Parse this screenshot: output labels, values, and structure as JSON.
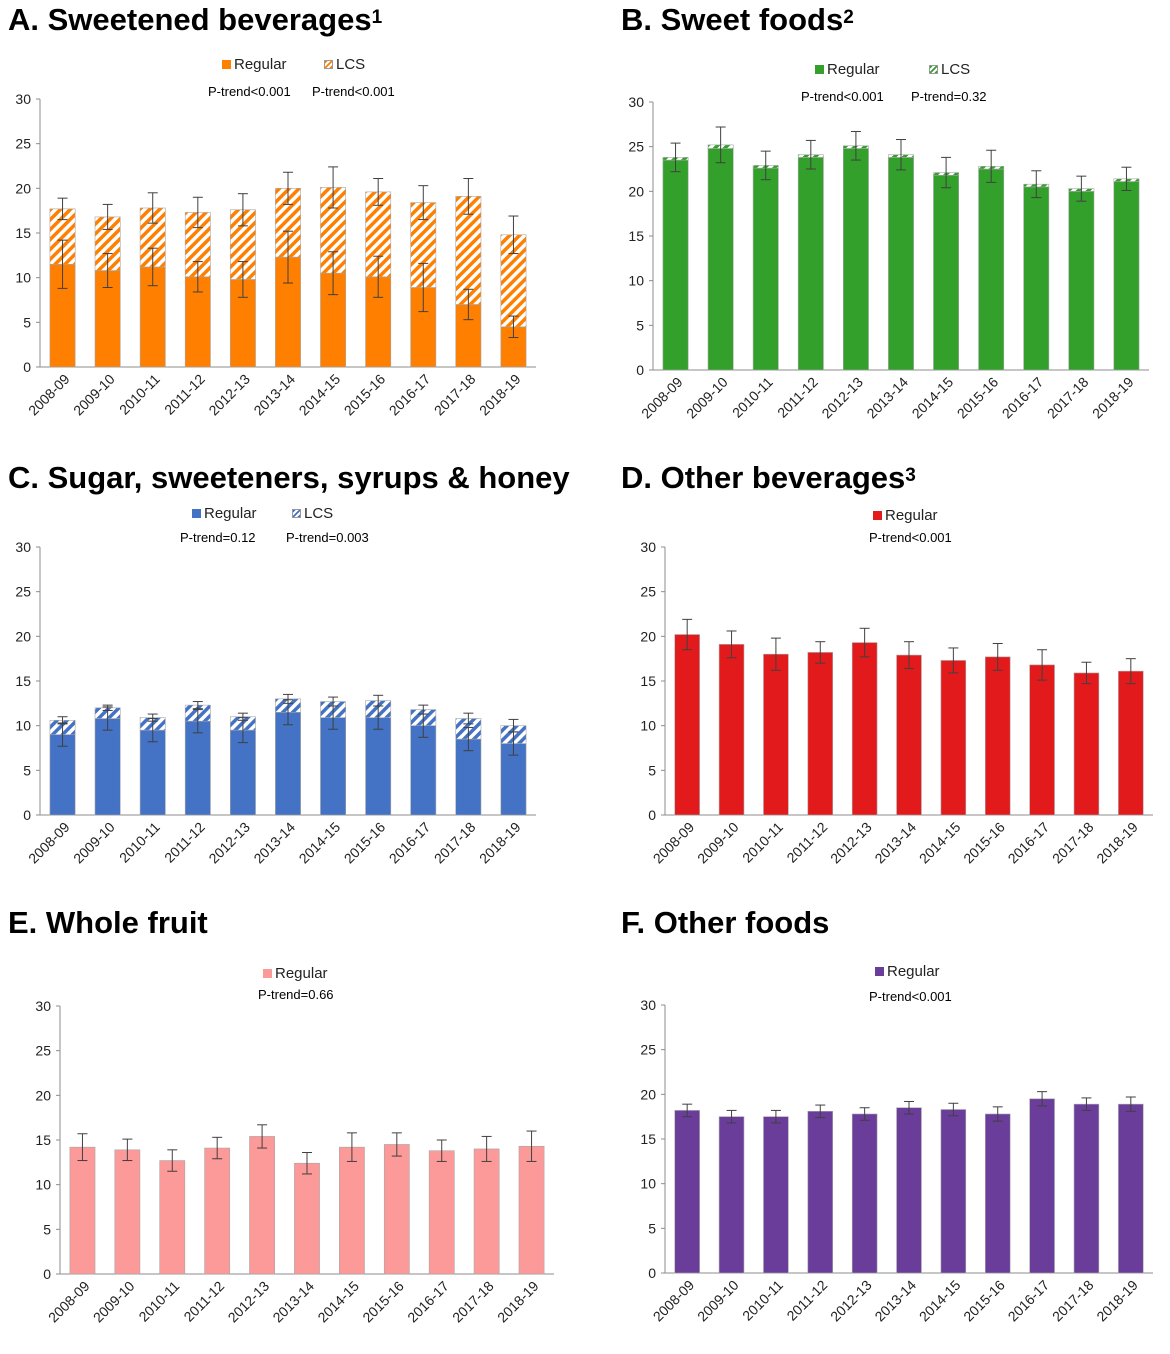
{
  "chart_data": [
    {
      "id": "A",
      "type": "bar",
      "title": "A. Sweetened beverages",
      "title_sup": "1",
      "categories": [
        "2008-09",
        "2009-10",
        "2010-11",
        "2011-12",
        "2012-13",
        "2013-14",
        "2014-15",
        "2015-16",
        "2016-17",
        "2017-18",
        "2018-19"
      ],
      "series": [
        {
          "name": "Regular",
          "values": [
            11.5,
            10.8,
            11.2,
            10.1,
            9.8,
            12.3,
            10.5,
            10.1,
            8.9,
            7.0,
            4.5
          ],
          "err": [
            2.7,
            1.9,
            2.1,
            1.7,
            2.0,
            2.9,
            2.4,
            2.3,
            2.7,
            1.7,
            1.2
          ]
        },
        {
          "name": "LCS",
          "values": [
            6.2,
            6.0,
            6.6,
            7.2,
            7.8,
            7.7,
            9.6,
            9.5,
            9.5,
            12.1,
            10.3
          ],
          "err": [
            1.2,
            1.4,
            1.7,
            1.7,
            1.8,
            1.8,
            2.3,
            1.5,
            1.9,
            2.0,
            2.1
          ]
        }
      ],
      "ptrends": [
        "P-trend<0.001",
        "P-trend<0.001"
      ],
      "yticks": [
        "0",
        "5",
        "10",
        "15",
        "20",
        "25",
        "30"
      ],
      "ylim": [
        0,
        30
      ],
      "colors": {
        "regular": "#ff7f00",
        "lcs": "#ff7f00"
      }
    },
    {
      "id": "B",
      "type": "bar",
      "title": "B. Sweet foods",
      "title_sup": "2",
      "categories": [
        "2008-09",
        "2009-10",
        "2010-11",
        "2011-12",
        "2012-13",
        "2013-14",
        "2014-15",
        "2015-16",
        "2016-17",
        "2017-18",
        "2018-19"
      ],
      "series": [
        {
          "name": "Regular",
          "values": [
            23.5,
            24.8,
            22.6,
            23.8,
            24.8,
            23.8,
            21.8,
            22.5,
            20.5,
            20.0,
            21.1
          ],
          "err": [
            0,
            0,
            0,
            0,
            0,
            0,
            0,
            0,
            0,
            0,
            0
          ]
        },
        {
          "name": "LCS",
          "values": [
            0.3,
            0.4,
            0.3,
            0.3,
            0.3,
            0.3,
            0.3,
            0.3,
            0.3,
            0.3,
            0.3
          ],
          "err": [
            1.6,
            2.0,
            1.6,
            1.6,
            1.6,
            1.7,
            1.7,
            1.8,
            1.5,
            1.4,
            1.3
          ]
        }
      ],
      "ptrends": [
        "P-trend<0.001",
        "P-trend=0.32"
      ],
      "yticks": [
        "0",
        "5",
        "10",
        "15",
        "20",
        "25",
        "30"
      ],
      "ylim": [
        0,
        30
      ],
      "colors": {
        "regular": "#33a02c",
        "lcs": "#33a02c"
      }
    },
    {
      "id": "C",
      "type": "bar",
      "title": "C. Sugar, sweeteners, syrups & honey",
      "title_sup": "",
      "categories": [
        "2008-09",
        "2009-10",
        "2010-11",
        "2011-12",
        "2012-13",
        "2013-14",
        "2014-15",
        "2015-16",
        "2016-17",
        "2017-18",
        "2018-19"
      ],
      "series": [
        {
          "name": "Regular",
          "values": [
            9.0,
            10.8,
            9.5,
            10.5,
            9.5,
            11.5,
            10.9,
            10.9,
            10.0,
            8.5,
            8.0
          ],
          "err": [
            1.3,
            1.3,
            1.3,
            1.3,
            1.4,
            1.4,
            1.3,
            1.3,
            1.3,
            1.3,
            1.3
          ]
        },
        {
          "name": "LCS",
          "values": [
            1.6,
            1.2,
            1.4,
            1.8,
            1.5,
            1.5,
            1.8,
            1.9,
            1.8,
            2.3,
            2.0
          ],
          "err": [
            0.4,
            0.3,
            0.4,
            0.4,
            0.4,
            0.5,
            0.5,
            0.6,
            0.5,
            0.6,
            0.7
          ]
        }
      ],
      "ptrends": [
        "P-trend=0.12",
        "P-trend=0.003"
      ],
      "yticks": [
        "0",
        "5",
        "10",
        "15",
        "20",
        "25",
        "30"
      ],
      "ylim": [
        0,
        30
      ],
      "colors": {
        "regular": "#4472c4",
        "lcs": "#4472c4"
      }
    },
    {
      "id": "D",
      "type": "bar",
      "title": "D. Other beverages",
      "title_sup": "3",
      "categories": [
        "2008-09",
        "2009-10",
        "2010-11",
        "2011-12",
        "2012-13",
        "2013-14",
        "2014-15",
        "2015-16",
        "2016-17",
        "2017-18",
        "2018-19"
      ],
      "series": [
        {
          "name": "Regular",
          "values": [
            20.2,
            19.1,
            18.0,
            18.2,
            19.3,
            17.9,
            17.3,
            17.7,
            16.8,
            15.9,
            16.1
          ],
          "err": [
            1.7,
            1.5,
            1.8,
            1.2,
            1.6,
            1.5,
            1.4,
            1.5,
            1.7,
            1.2,
            1.4
          ]
        }
      ],
      "ptrends": [
        "P-trend<0.001"
      ],
      "yticks": [
        "0",
        "5",
        "10",
        "15",
        "20",
        "25",
        "30"
      ],
      "ylim": [
        0,
        30
      ],
      "colors": {
        "regular": "#e31a1c"
      }
    },
    {
      "id": "E",
      "type": "bar",
      "title": "E. Whole fruit",
      "title_sup": "",
      "categories": [
        "2008-09",
        "2009-10",
        "2010-11",
        "2011-12",
        "2012-13",
        "2013-14",
        "2014-15",
        "2015-16",
        "2016-17",
        "2017-18",
        "2018-19"
      ],
      "series": [
        {
          "name": "Regular",
          "values": [
            14.2,
            13.9,
            12.7,
            14.1,
            15.4,
            12.4,
            14.2,
            14.5,
            13.8,
            14.0,
            14.3
          ],
          "err": [
            1.5,
            1.2,
            1.2,
            1.2,
            1.3,
            1.2,
            1.6,
            1.3,
            1.2,
            1.4,
            1.7
          ]
        }
      ],
      "ptrends": [
        "P-trend=0.66"
      ],
      "yticks": [
        "0",
        "5",
        "10",
        "15",
        "20",
        "25",
        "30"
      ],
      "ylim": [
        0,
        30
      ],
      "colors": {
        "regular": "#fb9a99"
      }
    },
    {
      "id": "F",
      "type": "bar",
      "title": "F. Other foods",
      "title_sup": "",
      "categories": [
        "2008-09",
        "2009-10",
        "2010-11",
        "2011-12",
        "2012-13",
        "2013-14",
        "2014-15",
        "2015-16",
        "2016-17",
        "2017-18",
        "2018-19"
      ],
      "series": [
        {
          "name": "Regular",
          "values": [
            18.2,
            17.5,
            17.5,
            18.1,
            17.8,
            18.5,
            18.3,
            17.8,
            19.5,
            18.9,
            18.9
          ],
          "err": [
            0.7,
            0.7,
            0.7,
            0.7,
            0.7,
            0.7,
            0.7,
            0.8,
            0.8,
            0.7,
            0.8
          ]
        }
      ],
      "ptrends": [
        "P-trend<0.001"
      ],
      "yticks": [
        "0",
        "5",
        "10",
        "15",
        "20",
        "25",
        "30"
      ],
      "ylim": [
        0,
        30
      ],
      "colors": {
        "regular": "#6a3d9a"
      }
    }
  ]
}
